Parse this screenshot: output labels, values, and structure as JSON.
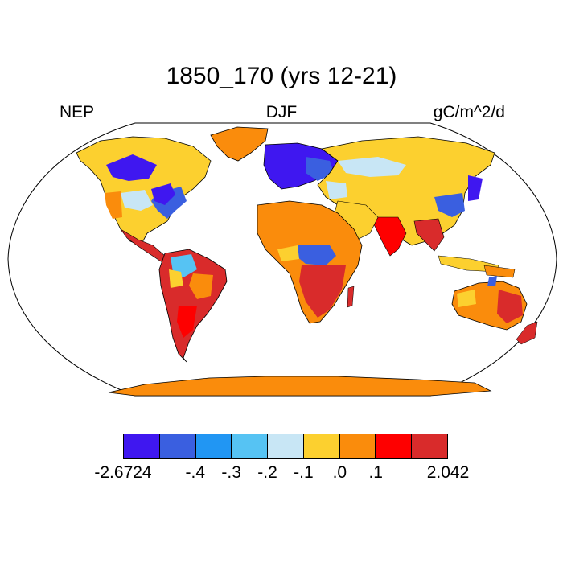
{
  "title": "1850_170 (yrs 12-21)",
  "variable": "NEP",
  "season": "DJF",
  "units": "gC/m^2/d",
  "legend": {
    "colors": [
      "#3f17f0",
      "#3a5fe0",
      "#2196f3",
      "#56c3f3",
      "#c8e6f5",
      "#fcd02f",
      "#fa8c0c",
      "#fe0000",
      "#d92b2b"
    ],
    "labels": [
      "-2.6724",
      "-.4",
      "-.3",
      "-.2",
      "-.1",
      ".0",
      ".1",
      "2.042"
    ]
  },
  "map_style": {
    "projection": "robinson",
    "ocean": "#ffffff",
    "coastline": "#000000"
  }
}
